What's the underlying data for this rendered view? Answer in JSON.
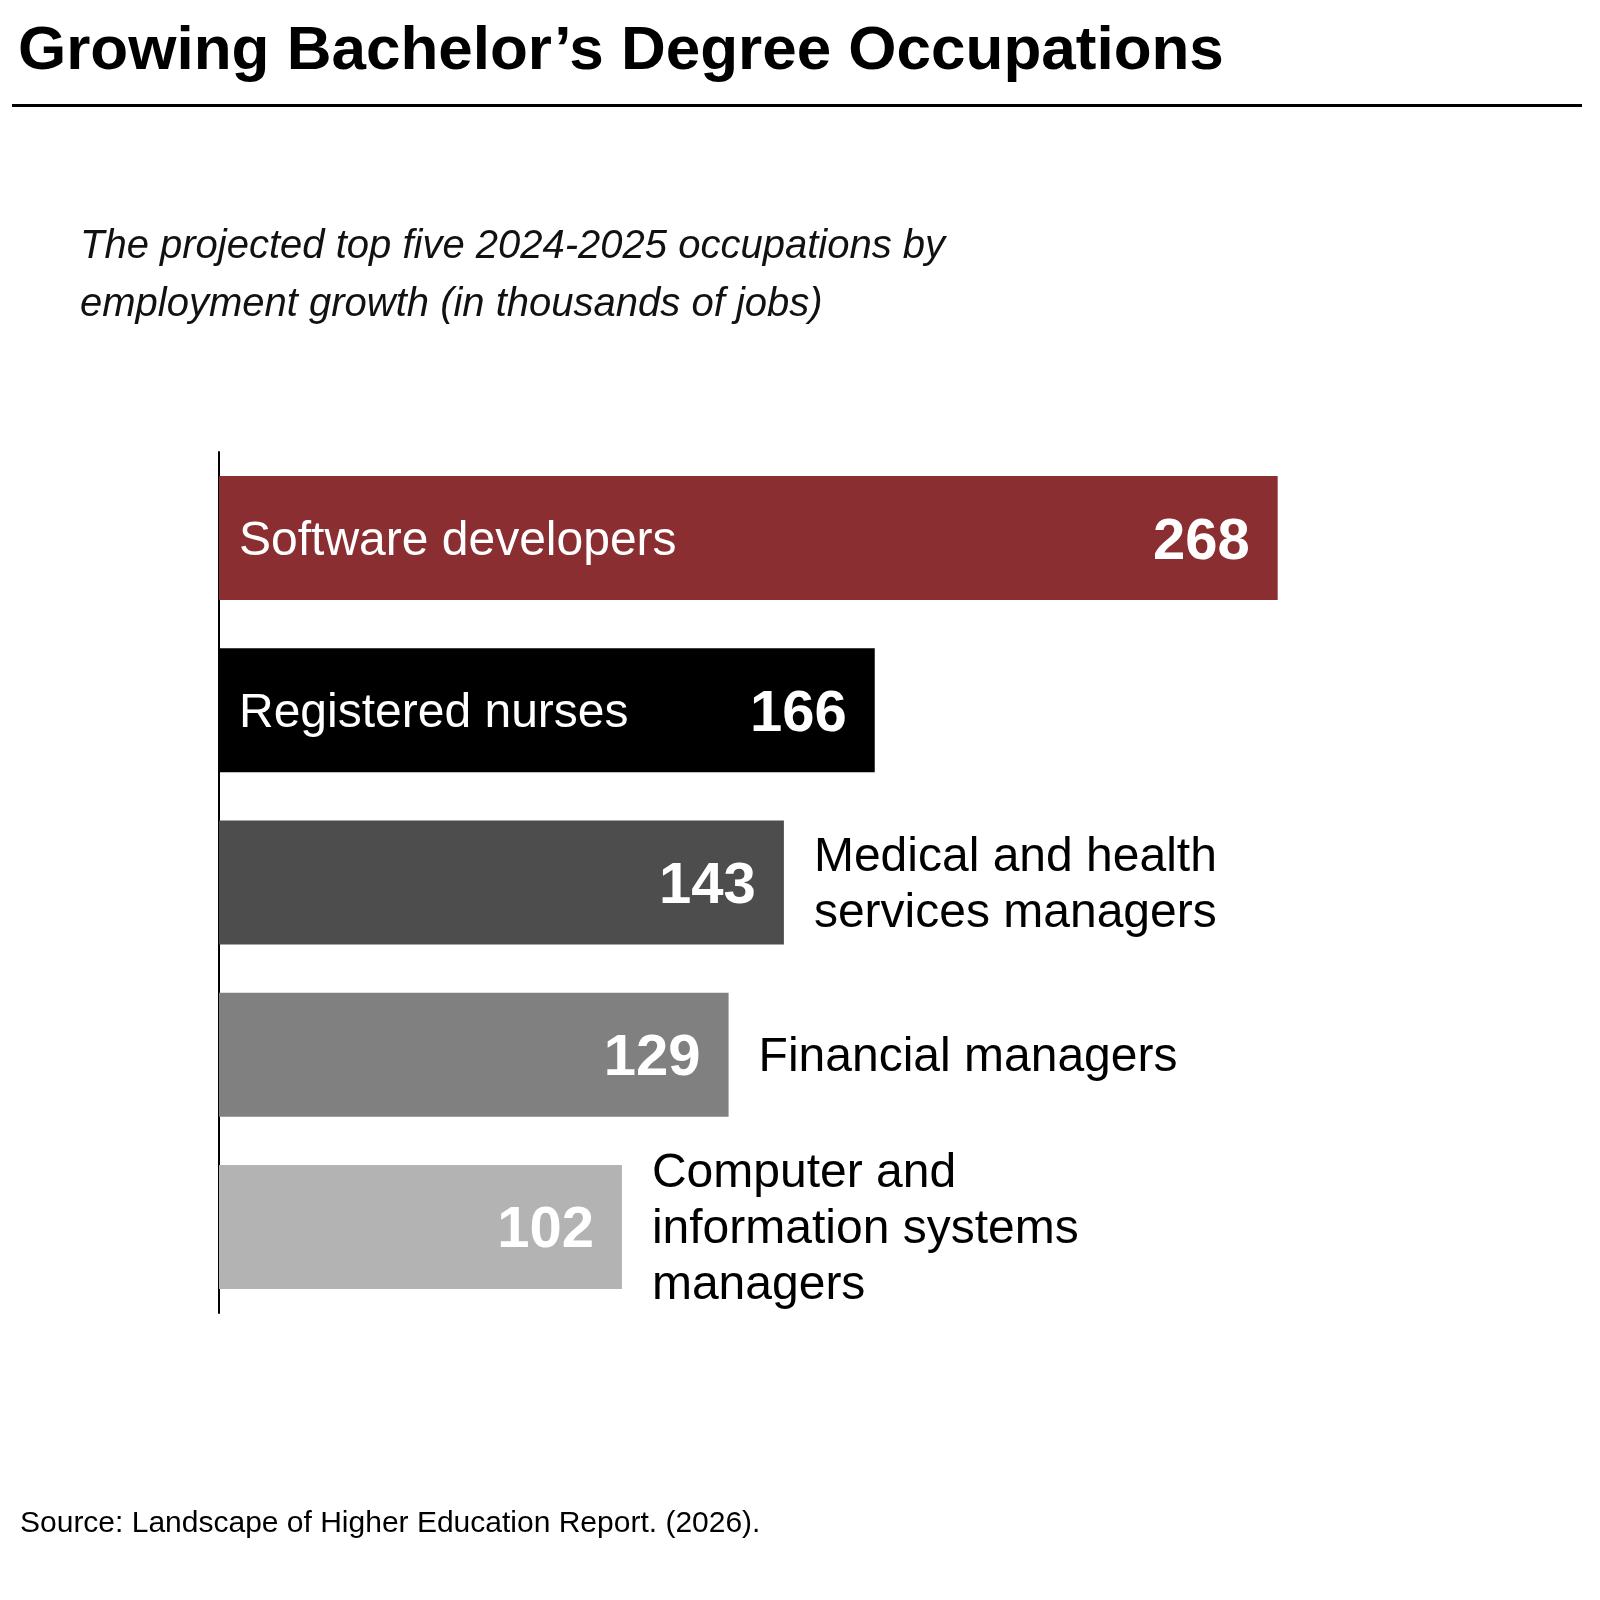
{
  "chart_data": {
    "type": "bar",
    "orientation": "horizontal",
    "title": "Growing Bachelor’s Degree Occupations",
    "subtitle": "The projected top five 2024-2025 occupations by employment growth (in thousands of jobs)",
    "categories": [
      "Software developers",
      "Registered nurses",
      "Medical and health services managers",
      "Financial managers",
      "Computer and information systems managers"
    ],
    "values": [
      268,
      166,
      143,
      129,
      102
    ],
    "colors": [
      "#8a2e32",
      "#000000",
      "#4d4d4d",
      "#808080",
      "#b3b3b3"
    ],
    "data_labels": true,
    "tick_labels": false,
    "annotations": [
      "Source: Landscape of Higher Education Report. (2026)."
    ]
  }
}
